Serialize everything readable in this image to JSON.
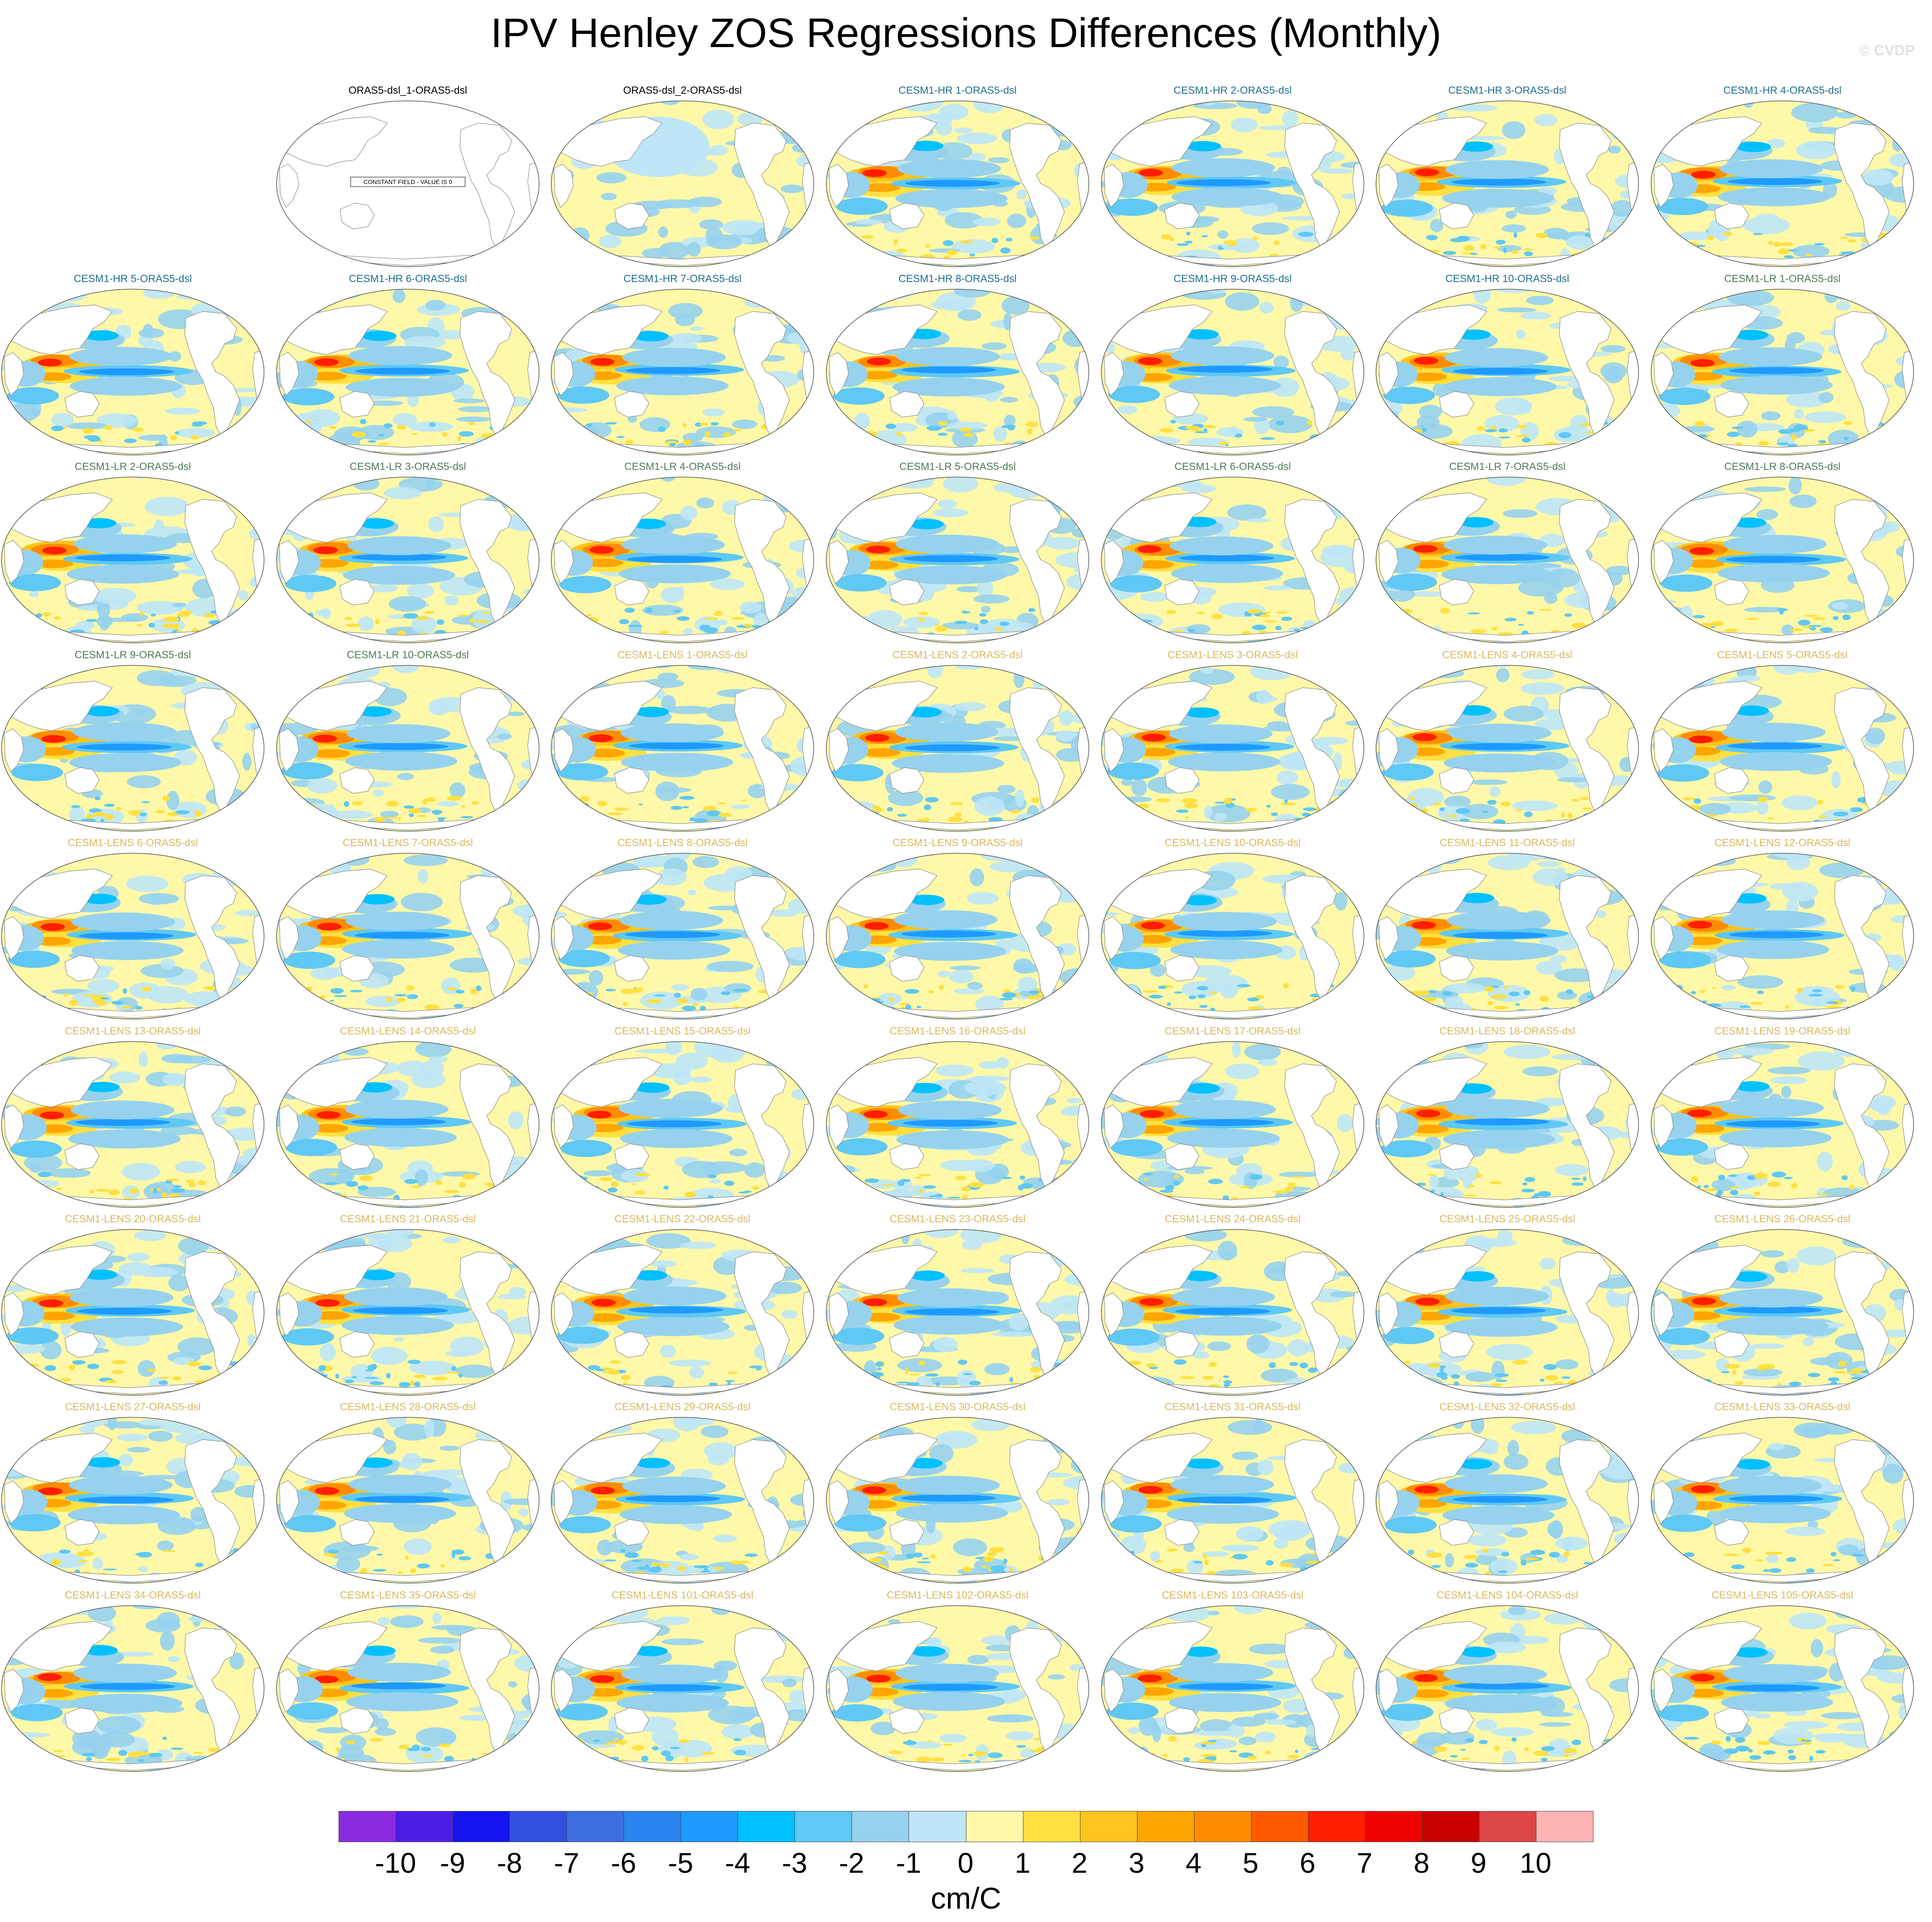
{
  "title": "IPV Henley ZOS Regressions Differences (Monthly)",
  "watermark": "© CVDP",
  "panels": [
    {
      "label": "ORAS5-dsl_1-ORAS5-dsl",
      "group": "obs",
      "note": "CONSTANT FIELD - VALUE IS 0"
    },
    {
      "label": "ORAS5-dsl_2-ORAS5-dsl",
      "group": "obs"
    },
    {
      "label": "CESM1-HR 1-ORAS5-dsl",
      "group": "hr"
    },
    {
      "label": "CESM1-HR 2-ORAS5-dsl",
      "group": "hr"
    },
    {
      "label": "CESM1-HR 3-ORAS5-dsl",
      "group": "hr"
    },
    {
      "label": "CESM1-HR 4-ORAS5-dsl",
      "group": "hr"
    },
    {
      "label": "CESM1-HR 5-ORAS5-dsl",
      "group": "hr"
    },
    {
      "label": "CESM1-HR 6-ORAS5-dsl",
      "group": "hr"
    },
    {
      "label": "CESM1-HR 7-ORAS5-dsl",
      "group": "hr"
    },
    {
      "label": "CESM1-HR 8-ORAS5-dsl",
      "group": "hr"
    },
    {
      "label": "CESM1-HR 9-ORAS5-dsl",
      "group": "hr"
    },
    {
      "label": "CESM1-HR 10-ORAS5-dsl",
      "group": "hr"
    },
    {
      "label": "CESM1-LR 1-ORAS5-dsl",
      "group": "lr"
    },
    {
      "label": "CESM1-LR 2-ORAS5-dsl",
      "group": "lr"
    },
    {
      "label": "CESM1-LR 3-ORAS5-dsl",
      "group": "lr"
    },
    {
      "label": "CESM1-LR 4-ORAS5-dsl",
      "group": "lr"
    },
    {
      "label": "CESM1-LR 5-ORAS5-dsl",
      "group": "lr"
    },
    {
      "label": "CESM1-LR 6-ORAS5-dsl",
      "group": "lr"
    },
    {
      "label": "CESM1-LR 7-ORAS5-dsl",
      "group": "lr"
    },
    {
      "label": "CESM1-LR 8-ORAS5-dsl",
      "group": "lr"
    },
    {
      "label": "CESM1-LR 9-ORAS5-dsl",
      "group": "lr"
    },
    {
      "label": "CESM1-LR 10-ORAS5-dsl",
      "group": "lr"
    },
    {
      "label": "CESM1-LENS 1-ORAS5-dsl",
      "group": "lens"
    },
    {
      "label": "CESM1-LENS 2-ORAS5-dsl",
      "group": "lens"
    },
    {
      "label": "CESM1-LENS 3-ORAS5-dsl",
      "group": "lens"
    },
    {
      "label": "CESM1-LENS 4-ORAS5-dsl",
      "group": "lens"
    },
    {
      "label": "CESM1-LENS 5-ORAS5-dsl",
      "group": "lens"
    },
    {
      "label": "CESM1-LENS 6-ORAS5-dsl",
      "group": "lens"
    },
    {
      "label": "CESM1-LENS 7-ORAS5-dsl",
      "group": "lens"
    },
    {
      "label": "CESM1-LENS 8-ORAS5-dsl",
      "group": "lens"
    },
    {
      "label": "CESM1-LENS 9-ORAS5-dsl",
      "group": "lens"
    },
    {
      "label": "CESM1-LENS 10-ORAS5-dsl",
      "group": "lens"
    },
    {
      "label": "CESM1-LENS 11-ORAS5-dsl",
      "group": "lens"
    },
    {
      "label": "CESM1-LENS 12-ORAS5-dsl",
      "group": "lens"
    },
    {
      "label": "CESM1-LENS 13-ORAS5-dsl",
      "group": "lens"
    },
    {
      "label": "CESM1-LENS 14-ORAS5-dsl",
      "group": "lens"
    },
    {
      "label": "CESM1-LENS 15-ORAS5-dsl",
      "group": "lens"
    },
    {
      "label": "CESM1-LENS 16-ORAS5-dsl",
      "group": "lens"
    },
    {
      "label": "CESM1-LENS 17-ORAS5-dsl",
      "group": "lens"
    },
    {
      "label": "CESM1-LENS 18-ORAS5-dsl",
      "group": "lens"
    },
    {
      "label": "CESM1-LENS 19-ORAS5-dsl",
      "group": "lens"
    },
    {
      "label": "CESM1-LENS 20-ORAS5-dsl",
      "group": "lens"
    },
    {
      "label": "CESM1-LENS 21-ORAS5-dsl",
      "group": "lens"
    },
    {
      "label": "CESM1-LENS 22-ORAS5-dsl",
      "group": "lens"
    },
    {
      "label": "CESM1-LENS 23-ORAS5-dsl",
      "group": "lens"
    },
    {
      "label": "CESM1-LENS 24-ORAS5-dsl",
      "group": "lens"
    },
    {
      "label": "CESM1-LENS 25-ORAS5-dsl",
      "group": "lens"
    },
    {
      "label": "CESM1-LENS 26-ORAS5-dsl",
      "group": "lens"
    },
    {
      "label": "CESM1-LENS 27-ORAS5-dsl",
      "group": "lens"
    },
    {
      "label": "CESM1-LENS 28-ORAS5-dsl",
      "group": "lens"
    },
    {
      "label": "CESM1-LENS 29-ORAS5-dsl",
      "group": "lens"
    },
    {
      "label": "CESM1-LENS 30-ORAS5-dsl",
      "group": "lens"
    },
    {
      "label": "CESM1-LENS 31-ORAS5-dsl",
      "group": "lens"
    },
    {
      "label": "CESM1-LENS 32-ORAS5-dsl",
      "group": "lens"
    },
    {
      "label": "CESM1-LENS 33-ORAS5-dsl",
      "group": "lens"
    },
    {
      "label": "CESM1-LENS 34-ORAS5-dsl",
      "group": "lens"
    },
    {
      "label": "CESM1-LENS 35-ORAS5-dsl",
      "group": "lens"
    },
    {
      "label": "CESM1-LENS 101-ORAS5-dsl",
      "group": "lens"
    },
    {
      "label": "CESM1-LENS 102-ORAS5-dsl",
      "group": "lens"
    },
    {
      "label": "CESM1-LENS 103-ORAS5-dsl",
      "group": "lens"
    },
    {
      "label": "CESM1-LENS 104-ORAS5-dsl",
      "group": "lens"
    },
    {
      "label": "CESM1-LENS 105-ORAS5-dsl",
      "group": "lens"
    }
  ],
  "colorbar": {
    "units": "cm/C",
    "tick_labels": [
      "-10",
      "-9",
      "-8",
      "-7",
      "-6",
      "-5",
      "-4",
      "-3",
      "-2",
      "-1",
      "0",
      "1",
      "2",
      "3",
      "4",
      "5",
      "6",
      "7",
      "8",
      "9",
      "10"
    ],
    "colors": [
      "#8a2be2",
      "#4b1ee8",
      "#1414f0",
      "#3050e0",
      "#3c6ee0",
      "#2a84f0",
      "#1e9aff",
      "#00c0ff",
      "#5fc8f5",
      "#96d2ee",
      "#bee6f6",
      "#fff8a8",
      "#ffe040",
      "#ffc41e",
      "#ffa500",
      "#ff8c00",
      "#ff5a00",
      "#ff1e00",
      "#f00000",
      "#c80000",
      "#dc4646",
      "#ffb4b4"
    ]
  },
  "colors": {
    "land": "#ffffff",
    "coast": "#8a8a8a",
    "outline": "#555555"
  }
}
